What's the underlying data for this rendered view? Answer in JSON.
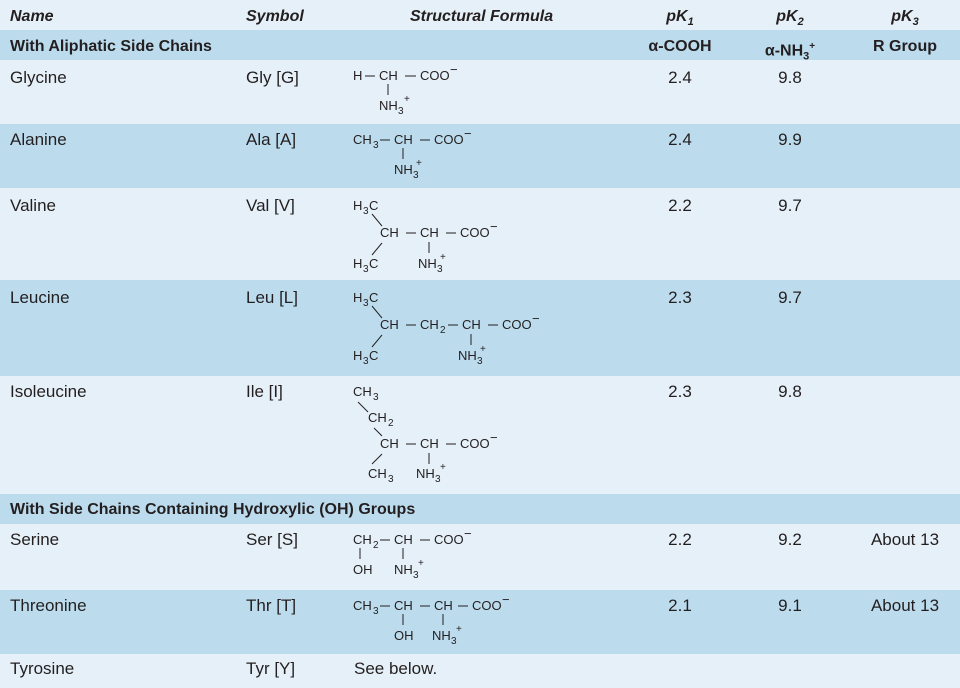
{
  "header": {
    "name": "Name",
    "symbol": "Symbol",
    "formula": "Structural Formula",
    "pk1": "pK",
    "pk1_sub": "1",
    "pk2": "pK",
    "pk2_sub": "2",
    "pk3": "pK",
    "pk3_sub": "3"
  },
  "sections": [
    {
      "title": "With Aliphatic Side Chains",
      "pk1_label": "α-COOH",
      "pk2_label": "α-NH",
      "pk2_label_sub": "3",
      "pk2_label_sup": "+",
      "pk3_label": "R Group"
    },
    {
      "title": "With Side Chains Containing Hydroxylic (OH) Groups"
    }
  ],
  "rows": [
    {
      "name": "Glycine",
      "symbol": "Gly [G]",
      "pk1": "2.4",
      "pk2": "9.8",
      "pk3": ""
    },
    {
      "name": "Alanine",
      "symbol": "Ala [A]",
      "pk1": "2.4",
      "pk2": "9.9",
      "pk3": ""
    },
    {
      "name": "Valine",
      "symbol": "Val [V]",
      "pk1": "2.2",
      "pk2": "9.7",
      "pk3": ""
    },
    {
      "name": "Leucine",
      "symbol": "Leu [L]",
      "pk1": "2.3",
      "pk2": "9.7",
      "pk3": ""
    },
    {
      "name": "Isoleucine",
      "symbol": "Ile [I]",
      "pk1": "2.3",
      "pk2": "9.8",
      "pk3": ""
    },
    {
      "name": "Serine",
      "symbol": "Ser [S]",
      "pk1": "2.2",
      "pk2": "9.2",
      "pk3": "About 13"
    },
    {
      "name": "Threonine",
      "symbol": "Thr [T]",
      "pk1": "2.1",
      "pk2": "9.1",
      "pk3": "About 13"
    },
    {
      "name": "Tyrosine",
      "symbol": "Tyr [Y]",
      "pk1": "",
      "pk2": "",
      "pk3": "",
      "formula_note": "See below."
    }
  ],
  "formula_text": {
    "h": "H",
    "ch": "CH",
    "ch2": "CH",
    "ch3": "CH",
    "h3c": "H",
    "coo": "COO",
    "minus": "−",
    "nh3": "NH",
    "plus": "+",
    "sub2": "2",
    "sub3": "3",
    "oh": "OH",
    "c": "C"
  }
}
